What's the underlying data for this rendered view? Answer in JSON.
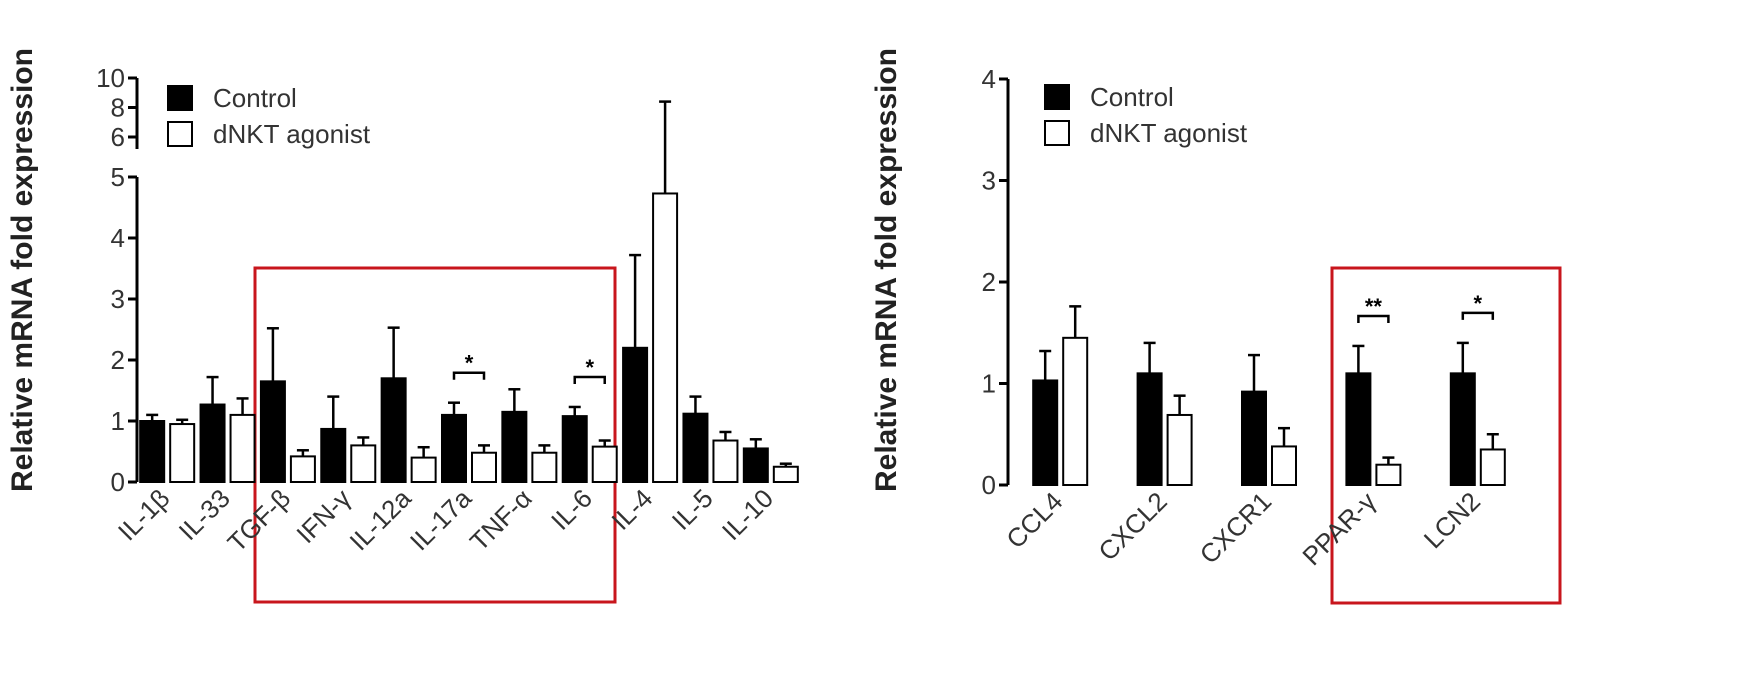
{
  "chart_data": [
    {
      "type": "bar",
      "y_label": "Relative mRNA fold expression",
      "categories": [
        "IL-1β",
        "IL-33",
        "TGF-β",
        "IFN-γ",
        "IL-12a",
        "IL-17a",
        "TNF-α",
        "IL-6",
        "IL-4",
        "IL-5",
        "IL-10"
      ],
      "series": [
        {
          "name": "Control",
          "color": "#000000",
          "values": [
            1.0,
            1.27,
            1.65,
            0.87,
            1.7,
            1.1,
            1.15,
            1.08,
            2.2,
            1.12,
            0.55
          ],
          "errors": [
            0.1,
            0.45,
            0.87,
            0.53,
            0.83,
            0.2,
            0.37,
            0.15,
            1.52,
            0.28,
            0.15
          ]
        },
        {
          "name": "dNKT agonist",
          "color": "#ffffff",
          "values": [
            0.95,
            1.1,
            0.42,
            0.6,
            0.4,
            0.48,
            0.48,
            0.58,
            4.73,
            0.68,
            0.25
          ],
          "errors": [
            0.07,
            0.27,
            0.1,
            0.13,
            0.17,
            0.12,
            0.12,
            0.1,
            3.67,
            0.14,
            0.05
          ]
        }
      ],
      "ylim": [
        0,
        10
      ],
      "y_break": [
        5,
        6
      ],
      "yticks": [
        0,
        1,
        2,
        3,
        4,
        5,
        6,
        8,
        10
      ],
      "legend": "upper left",
      "annotations": [
        {
          "text": "*",
          "category": 5
        },
        {
          "text": "*",
          "category": 7
        }
      ]
    },
    {
      "type": "bar",
      "y_label": "Relative mRNA fold expression",
      "categories": [
        "CCL4",
        "CXCL2",
        "CXCR1",
        "PPAR-γ",
        "LCN2"
      ],
      "series": [
        {
          "name": "Control",
          "color": "#000000",
          "values": [
            1.03,
            1.1,
            0.92,
            1.1,
            1.1
          ],
          "errors": [
            0.29,
            0.3,
            0.36,
            0.27,
            0.3
          ]
        },
        {
          "name": "dNKT agonist",
          "color": "#ffffff",
          "values": [
            1.45,
            0.69,
            0.38,
            0.2,
            0.35
          ],
          "errors": [
            0.31,
            0.19,
            0.18,
            0.07,
            0.15
          ]
        }
      ],
      "ylim": [
        0,
        4
      ],
      "yticks": [
        0,
        1,
        2,
        3,
        4
      ],
      "legend": "upper left",
      "annotations": [
        {
          "text": "**",
          "category": 3
        },
        {
          "text": "*",
          "category": 4
        }
      ]
    }
  ]
}
